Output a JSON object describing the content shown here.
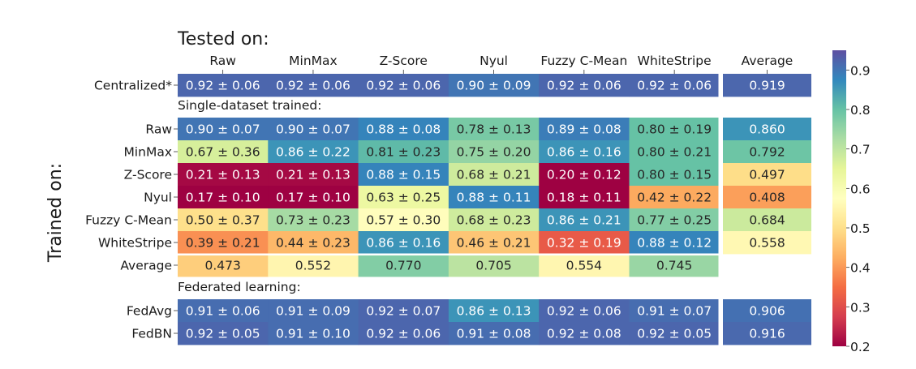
{
  "chart_data": {
    "type": "heatmap",
    "title": "Tested on:",
    "ylabel": "Trained on:",
    "columns": [
      "Raw",
      "MinMax",
      "Z-Score",
      "Nyul",
      "Fuzzy C-Mean",
      "WhiteStripe",
      "Average"
    ],
    "colormap": "Spectral",
    "colorbar": {
      "range": [
        0.2,
        0.95
      ],
      "ticks": [
        "0.2",
        "0.3",
        "0.4",
        "0.5",
        "0.6",
        "0.7",
        "0.8",
        "0.9"
      ]
    },
    "sections": [
      {
        "label": "",
        "rows": [
          {
            "name": "Centralized*",
            "means": [
              0.92,
              0.92,
              0.92,
              0.9,
              0.92,
              0.92
            ],
            "stds": [
              0.06,
              0.06,
              0.06,
              0.09,
              0.06,
              0.06
            ],
            "average": 0.919
          }
        ]
      },
      {
        "label": "Single-dataset trained:",
        "rows": [
          {
            "name": "Raw",
            "means": [
              0.9,
              0.9,
              0.88,
              0.78,
              0.89,
              0.8
            ],
            "stds": [
              0.07,
              0.07,
              0.08,
              0.13,
              0.08,
              0.19
            ],
            "average": 0.86
          },
          {
            "name": "MinMax",
            "means": [
              0.67,
              0.86,
              0.81,
              0.75,
              0.86,
              0.8
            ],
            "stds": [
              0.36,
              0.22,
              0.23,
              0.2,
              0.16,
              0.21
            ],
            "average": 0.792
          },
          {
            "name": "Z-Score",
            "means": [
              0.21,
              0.21,
              0.88,
              0.68,
              0.2,
              0.8
            ],
            "stds": [
              0.13,
              0.13,
              0.15,
              0.21,
              0.12,
              0.15
            ],
            "average": 0.497
          },
          {
            "name": "Nyul",
            "means": [
              0.17,
              0.17,
              0.63,
              0.88,
              0.18,
              0.42
            ],
            "stds": [
              0.1,
              0.1,
              0.25,
              0.11,
              0.11,
              0.22
            ],
            "average": 0.408
          },
          {
            "name": "Fuzzy C-Mean",
            "means": [
              0.5,
              0.73,
              0.57,
              0.68,
              0.86,
              0.77
            ],
            "stds": [
              0.37,
              0.23,
              0.3,
              0.23,
              0.21,
              0.25
            ],
            "average": 0.684
          },
          {
            "name": "WhiteStripe",
            "means": [
              0.39,
              0.44,
              0.86,
              0.46,
              0.32,
              0.88
            ],
            "stds": [
              0.21,
              0.23,
              0.16,
              0.21,
              0.19,
              0.12
            ],
            "average": 0.558
          },
          {
            "name": "Average",
            "column_averages": [
              0.473,
              0.552,
              0.77,
              0.705,
              0.554,
              0.745
            ]
          }
        ]
      },
      {
        "label": "Federated learning:",
        "rows": [
          {
            "name": "FedAvg",
            "means": [
              0.91,
              0.91,
              0.92,
              0.86,
              0.92,
              0.91
            ],
            "stds": [
              0.06,
              0.09,
              0.07,
              0.13,
              0.06,
              0.07
            ],
            "average": 0.906
          },
          {
            "name": "FedBN",
            "means": [
              0.92,
              0.91,
              0.92,
              0.91,
              0.92,
              0.92
            ],
            "stds": [
              0.05,
              0.1,
              0.06,
              0.08,
              0.08,
              0.05
            ],
            "average": 0.916
          }
        ]
      }
    ]
  }
}
